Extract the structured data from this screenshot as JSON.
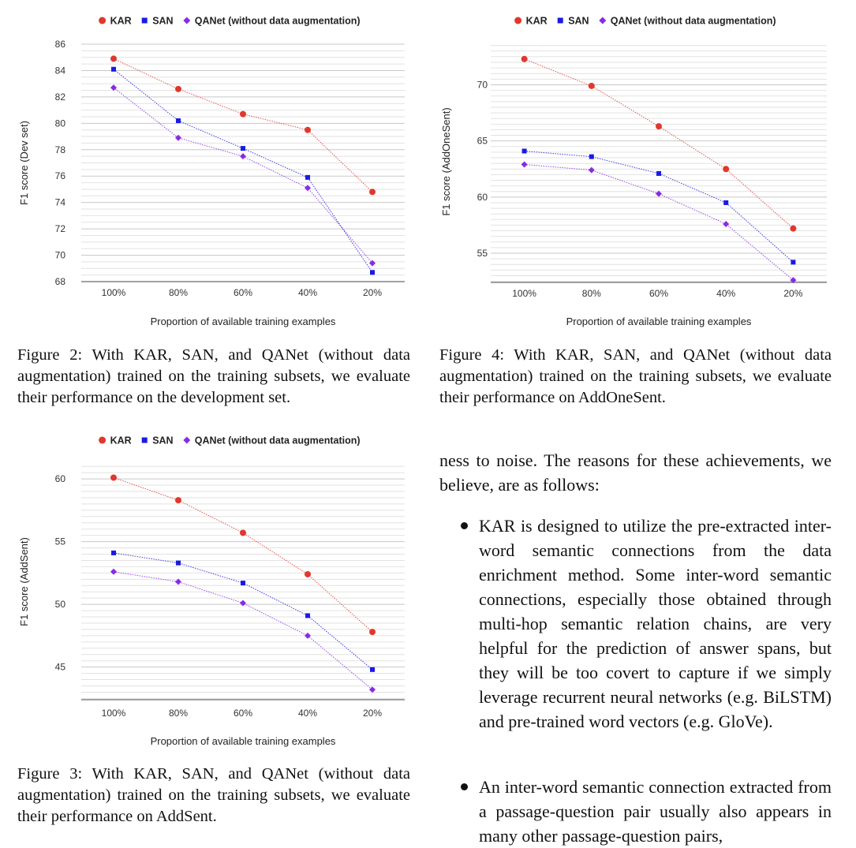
{
  "chart_data": [
    {
      "id": "fig2",
      "type": "line",
      "categories": [
        "100%",
        "80%",
        "60%",
        "40%",
        "20%"
      ],
      "series": [
        {
          "name": "KAR",
          "values": [
            84.9,
            82.6,
            80.7,
            79.5,
            74.8
          ],
          "color": "#e0382e",
          "marker": "circle"
        },
        {
          "name": "SAN",
          "values": [
            84.1,
            80.2,
            78.1,
            75.9,
            68.7
          ],
          "color": "#1a1ae6",
          "marker": "square"
        },
        {
          "name": "QANet (without data augmentation)",
          "values": [
            82.7,
            78.9,
            77.5,
            75.1,
            69.4
          ],
          "color": "#8a2be2",
          "marker": "diamond"
        }
      ],
      "xlabel": "Proportion of available training examples",
      "ylabel": "F1 score (Dev set)",
      "ylim": [
        68,
        86
      ],
      "yticks": [
        68,
        70,
        72,
        74,
        76,
        78,
        80,
        82,
        84,
        86
      ],
      "grid": true,
      "legend": "top"
    },
    {
      "id": "fig4",
      "type": "line",
      "categories": [
        "100%",
        "80%",
        "60%",
        "40%",
        "20%"
      ],
      "series": [
        {
          "name": "KAR",
          "values": [
            72.3,
            69.9,
            66.3,
            62.5,
            57.2
          ],
          "color": "#e0382e",
          "marker": "circle"
        },
        {
          "name": "SAN",
          "values": [
            64.1,
            63.6,
            62.1,
            59.5,
            54.2
          ],
          "color": "#1a1ae6",
          "marker": "square"
        },
        {
          "name": "QANet (without data augmentation)",
          "values": [
            62.9,
            62.4,
            60.3,
            57.6,
            52.6
          ],
          "color": "#8a2be2",
          "marker": "diamond"
        }
      ],
      "xlabel": "Proportion of available training examples",
      "ylabel": "F1 score (AddOneSent)",
      "ylim": [
        52.4,
        73.9
      ],
      "yticks": [
        55,
        60,
        65,
        70
      ],
      "grid": true,
      "legend": "top"
    },
    {
      "id": "fig3",
      "type": "line",
      "categories": [
        "100%",
        "80%",
        "60%",
        "40%",
        "20%"
      ],
      "series": [
        {
          "name": "KAR",
          "values": [
            60.1,
            58.3,
            55.7,
            52.4,
            47.8
          ],
          "color": "#e0382e",
          "marker": "circle"
        },
        {
          "name": "SAN",
          "values": [
            54.1,
            53.3,
            51.7,
            49.1,
            44.8
          ],
          "color": "#1a1ae6",
          "marker": "square"
        },
        {
          "name": "QANet (without data augmentation)",
          "values": [
            52.6,
            51.8,
            50.1,
            47.5,
            43.2
          ],
          "color": "#8a2be2",
          "marker": "diamond"
        }
      ],
      "xlabel": "Proportion of available training examples",
      "ylabel": "F1 score (AddSent)",
      "ylim": [
        42.4,
        61.2
      ],
      "yticks": [
        45,
        50,
        55,
        60
      ],
      "grid": true,
      "legend": "top"
    }
  ],
  "captions": {
    "fig2": "Figure 2:  With KAR, SAN, and QANet (without data augmentation) trained on the training subsets, we evaluate their performance on the development set.",
    "fig4": "Figure 4:  With KAR, SAN, and QANet (without data augmentation) trained on the training subsets, we evaluate their performance on AddOneSent.",
    "fig3": "Figure 3:  With KAR, SAN, and QANet (without data augmentation) trained on the training subsets, we evaluate their performance on AddSent."
  },
  "body": {
    "intro": "ness to noise. The reasons for these achievements, we believe, are as follows:",
    "bullet1": "KAR is designed to utilize the pre-extracted inter-word semantic connections from the data enrichment method.  Some inter-word semantic connections, especially those obtained through multi-hop semantic relation chains, are very helpful for the prediction of answer spans, but they will be too covert to capture if we simply leverage recurrent neural networks (e.g. BiLSTM) and pre-trained word vectors (e.g. GloVe).",
    "bullet2": "An inter-word semantic connection extracted from a passage-question pair usually also appears in many other passage-question pairs,"
  }
}
